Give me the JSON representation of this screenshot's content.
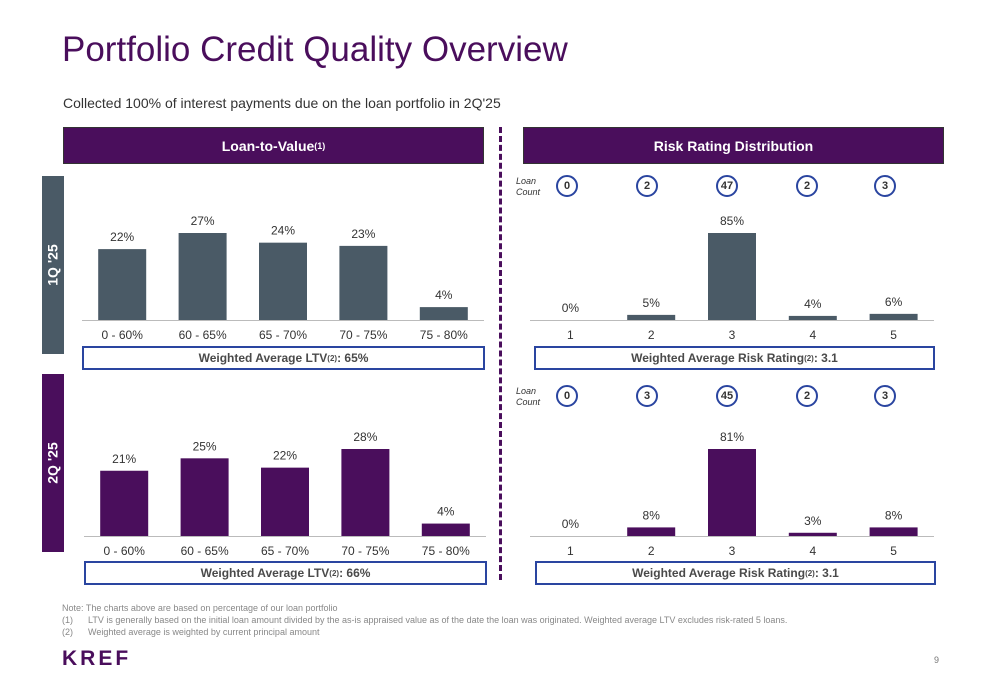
{
  "title": "Portfolio Credit Quality Overview",
  "subtitle": "Collected 100% of interest payments due on the loan portfolio in 2Q'25",
  "ltv_header": {
    "label": "Loan-to-Value",
    "sup": "(1)"
  },
  "risk_header": {
    "label": "Risk Rating Distribution"
  },
  "side_tabs": {
    "q1": "1Q '25",
    "q2": "2Q '25"
  },
  "weighted": {
    "ltv_q1": {
      "prefix": "Weighted Average LTV",
      "sup": "(2)",
      "value": ": 65%"
    },
    "ltv_q2": {
      "prefix": "Weighted Average LTV",
      "sup": "(2)",
      "value": ": 66%"
    },
    "risk_q1": {
      "prefix": "Weighted Average Risk Rating",
      "sup": "(2)",
      "value": ": 3.1"
    },
    "risk_q2": {
      "prefix": "Weighted Average Risk Rating",
      "sup": "(2)",
      "value": ": 3.1"
    }
  },
  "loan_count_label": {
    "line1": "Loan",
    "line2": "Count"
  },
  "loan_counts": {
    "q1": [
      "0",
      "2",
      "47",
      "2",
      "3"
    ],
    "q2": [
      "0",
      "3",
      "45",
      "2",
      "3"
    ]
  },
  "colors": {
    "purple": "#4a0e5c",
    "slate": "#4a5a66",
    "accent_blue": "#2a45a0"
  },
  "chart_data": [
    {
      "type": "bar",
      "id": "ltv_q1",
      "categories": [
        "0 - 60%",
        "60 - 65%",
        "65 - 70%",
        "70 - 75%",
        "75 - 80%"
      ],
      "values": [
        22,
        27,
        24,
        23,
        4
      ],
      "labels": [
        "22%",
        "27%",
        "24%",
        "23%",
        "4%"
      ],
      "color": "#4a5a66",
      "ylim": [
        0,
        27
      ]
    },
    {
      "type": "bar",
      "id": "risk_q1",
      "categories": [
        "1",
        "2",
        "3",
        "4",
        "5"
      ],
      "values": [
        0,
        5,
        85,
        4,
        6
      ],
      "labels": [
        "0%",
        "5%",
        "85%",
        "4%",
        "6%"
      ],
      "color": "#4a5a66",
      "ylim": [
        0,
        85
      ]
    },
    {
      "type": "bar",
      "id": "ltv_q2",
      "categories": [
        "0 - 60%",
        "60 - 65%",
        "65 - 70%",
        "70 - 75%",
        "75 - 80%"
      ],
      "values": [
        21,
        25,
        22,
        28,
        4
      ],
      "labels": [
        "21%",
        "25%",
        "22%",
        "28%",
        "4%"
      ],
      "color": "#4a0e5c",
      "ylim": [
        0,
        28
      ]
    },
    {
      "type": "bar",
      "id": "risk_q2",
      "categories": [
        "1",
        "2",
        "3",
        "4",
        "5"
      ],
      "values": [
        0,
        8,
        81,
        3,
        8
      ],
      "labels": [
        "0%",
        "8%",
        "81%",
        "3%",
        "8%"
      ],
      "color": "#4a0e5c",
      "ylim": [
        0,
        81
      ]
    }
  ],
  "notes": {
    "intro": "Note: The charts above are based on percentage of our loan portfolio",
    "n1_num": "(1)",
    "n1_text": "LTV is generally based on the initial loan amount divided by the as-is appraised value as of the date the loan was originated. Weighted average LTV excludes risk-rated 5 loans.",
    "n2_num": "(2)",
    "n2_text": "Weighted average is weighted by current principal amount"
  },
  "logo": "KREF",
  "page_number": "9"
}
